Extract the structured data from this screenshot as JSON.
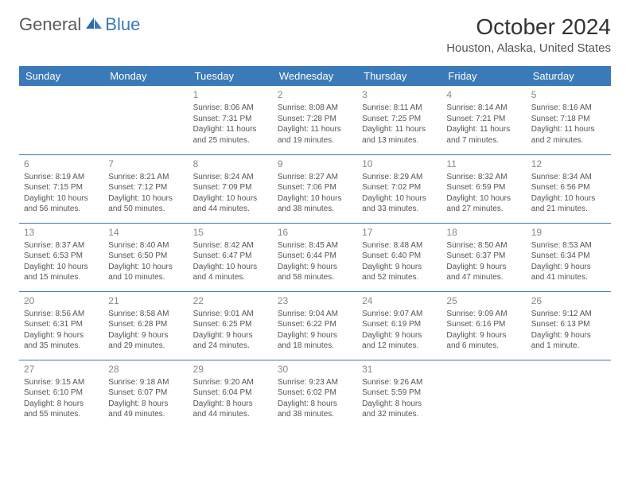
{
  "logo": {
    "text1": "General",
    "text2": "Blue"
  },
  "title": "October 2024",
  "location": "Houston, Alaska, United States",
  "colors": {
    "header_bg": "#3b7ab8",
    "header_text": "#ffffff",
    "border": "#3b7ab8",
    "body_text": "#555555",
    "daynum": "#888888"
  },
  "day_headers": [
    "Sunday",
    "Monday",
    "Tuesday",
    "Wednesday",
    "Thursday",
    "Friday",
    "Saturday"
  ],
  "weeks": [
    [
      null,
      null,
      {
        "n": "1",
        "sr": "8:06 AM",
        "ss": "7:31 PM",
        "dl": "11 hours and 25 minutes."
      },
      {
        "n": "2",
        "sr": "8:08 AM",
        "ss": "7:28 PM",
        "dl": "11 hours and 19 minutes."
      },
      {
        "n": "3",
        "sr": "8:11 AM",
        "ss": "7:25 PM",
        "dl": "11 hours and 13 minutes."
      },
      {
        "n": "4",
        "sr": "8:14 AM",
        "ss": "7:21 PM",
        "dl": "11 hours and 7 minutes."
      },
      {
        "n": "5",
        "sr": "8:16 AM",
        "ss": "7:18 PM",
        "dl": "11 hours and 2 minutes."
      }
    ],
    [
      {
        "n": "6",
        "sr": "8:19 AM",
        "ss": "7:15 PM",
        "dl": "10 hours and 56 minutes."
      },
      {
        "n": "7",
        "sr": "8:21 AM",
        "ss": "7:12 PM",
        "dl": "10 hours and 50 minutes."
      },
      {
        "n": "8",
        "sr": "8:24 AM",
        "ss": "7:09 PM",
        "dl": "10 hours and 44 minutes."
      },
      {
        "n": "9",
        "sr": "8:27 AM",
        "ss": "7:06 PM",
        "dl": "10 hours and 38 minutes."
      },
      {
        "n": "10",
        "sr": "8:29 AM",
        "ss": "7:02 PM",
        "dl": "10 hours and 33 minutes."
      },
      {
        "n": "11",
        "sr": "8:32 AM",
        "ss": "6:59 PM",
        "dl": "10 hours and 27 minutes."
      },
      {
        "n": "12",
        "sr": "8:34 AM",
        "ss": "6:56 PM",
        "dl": "10 hours and 21 minutes."
      }
    ],
    [
      {
        "n": "13",
        "sr": "8:37 AM",
        "ss": "6:53 PM",
        "dl": "10 hours and 15 minutes."
      },
      {
        "n": "14",
        "sr": "8:40 AM",
        "ss": "6:50 PM",
        "dl": "10 hours and 10 minutes."
      },
      {
        "n": "15",
        "sr": "8:42 AM",
        "ss": "6:47 PM",
        "dl": "10 hours and 4 minutes."
      },
      {
        "n": "16",
        "sr": "8:45 AM",
        "ss": "6:44 PM",
        "dl": "9 hours and 58 minutes."
      },
      {
        "n": "17",
        "sr": "8:48 AM",
        "ss": "6:40 PM",
        "dl": "9 hours and 52 minutes."
      },
      {
        "n": "18",
        "sr": "8:50 AM",
        "ss": "6:37 PM",
        "dl": "9 hours and 47 minutes."
      },
      {
        "n": "19",
        "sr": "8:53 AM",
        "ss": "6:34 PM",
        "dl": "9 hours and 41 minutes."
      }
    ],
    [
      {
        "n": "20",
        "sr": "8:56 AM",
        "ss": "6:31 PM",
        "dl": "9 hours and 35 minutes."
      },
      {
        "n": "21",
        "sr": "8:58 AM",
        "ss": "6:28 PM",
        "dl": "9 hours and 29 minutes."
      },
      {
        "n": "22",
        "sr": "9:01 AM",
        "ss": "6:25 PM",
        "dl": "9 hours and 24 minutes."
      },
      {
        "n": "23",
        "sr": "9:04 AM",
        "ss": "6:22 PM",
        "dl": "9 hours and 18 minutes."
      },
      {
        "n": "24",
        "sr": "9:07 AM",
        "ss": "6:19 PM",
        "dl": "9 hours and 12 minutes."
      },
      {
        "n": "25",
        "sr": "9:09 AM",
        "ss": "6:16 PM",
        "dl": "9 hours and 6 minutes."
      },
      {
        "n": "26",
        "sr": "9:12 AM",
        "ss": "6:13 PM",
        "dl": "9 hours and 1 minute."
      }
    ],
    [
      {
        "n": "27",
        "sr": "9:15 AM",
        "ss": "6:10 PM",
        "dl": "8 hours and 55 minutes."
      },
      {
        "n": "28",
        "sr": "9:18 AM",
        "ss": "6:07 PM",
        "dl": "8 hours and 49 minutes."
      },
      {
        "n": "29",
        "sr": "9:20 AM",
        "ss": "6:04 PM",
        "dl": "8 hours and 44 minutes."
      },
      {
        "n": "30",
        "sr": "9:23 AM",
        "ss": "6:02 PM",
        "dl": "8 hours and 38 minutes."
      },
      {
        "n": "31",
        "sr": "9:26 AM",
        "ss": "5:59 PM",
        "dl": "8 hours and 32 minutes."
      },
      null,
      null
    ]
  ]
}
